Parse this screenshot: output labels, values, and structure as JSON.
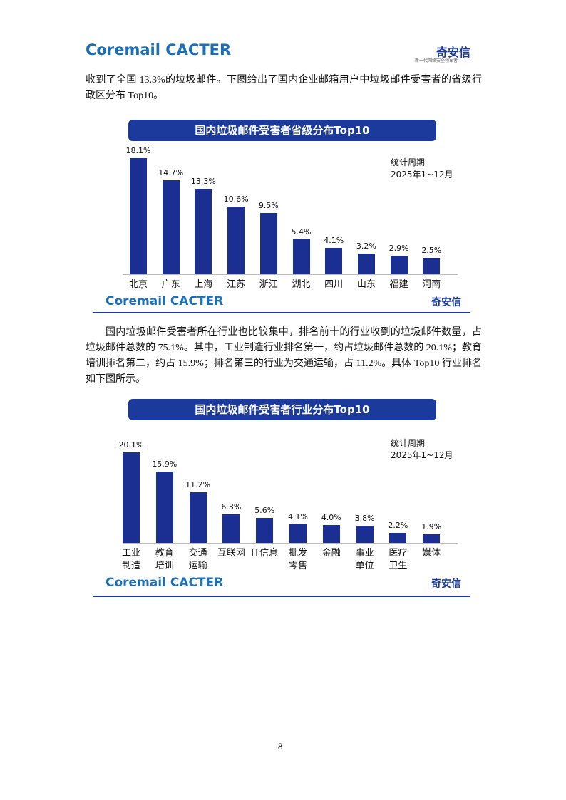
{
  "header": {
    "logo_left": "Coremail CACTER",
    "logo_right": "奇安信",
    "logo_right_tagline": "新一代网络安全领军者"
  },
  "paragraphs": [
    "收到了全国 13.3%的垃圾邮件。下图给出了国内企业邮箱用户中垃圾邮件受害者的省级行政区分布 Top10。",
    "国内垃圾邮件受害者所在行业也比较集中，排名前十的行业收到的垃圾邮件数量，占垃圾邮件总数的 75.1%。其中，工业制造行业排名第一，约占垃圾邮件总数的 20.1%；教育培训排名第二，约占 15.9%；排名第三的行业为交通运输，占 11.2%。具体 Top10 行业排名如下图所示。"
  ],
  "chart_data": [
    {
      "type": "bar",
      "title": "国内垃圾邮件受害者省级分布Top10",
      "annotation": "统计周期\n2025年1~12月",
      "footer_left": "Coremail CACTER",
      "footer_right": "奇安信",
      "color": "#1b2f93",
      "categories": [
        "北京",
        "广东",
        "上海",
        "江苏",
        "浙江",
        "湖北",
        "四川",
        "山东",
        "福建",
        "河南"
      ],
      "values": [
        18.1,
        14.7,
        13.3,
        10.6,
        9.5,
        5.4,
        4.1,
        3.2,
        2.9,
        2.5
      ],
      "value_labels": [
        "18.1%",
        "14.7%",
        "13.3%",
        "10.6%",
        "9.5%",
        "5.4%",
        "4.1%",
        "3.2%",
        "2.9%",
        "2.5%"
      ]
    },
    {
      "type": "bar",
      "title": "国内垃圾邮件受害者行业分布Top10",
      "annotation": "统计周期\n2025年1~12月",
      "footer_left": "Coremail CACTER",
      "footer_right": "奇安信",
      "color": "#1b2f93",
      "categories": [
        "工业\n制造",
        "教育\n培训",
        "交通\n运输",
        "互联网",
        "IT信息",
        "批发\n零售",
        "金融",
        "事业\n单位",
        "医疗\n卫生",
        "媒体"
      ],
      "values": [
        20.1,
        15.9,
        11.2,
        6.3,
        5.6,
        4.1,
        4.0,
        3.8,
        2.2,
        1.9
      ],
      "value_labels": [
        "20.1%",
        "15.9%",
        "11.2%",
        "6.3%",
        "5.6%",
        "4.1%",
        "4.0%",
        "3.8%",
        "2.2%",
        "1.9%"
      ]
    }
  ],
  "page_number": "8"
}
